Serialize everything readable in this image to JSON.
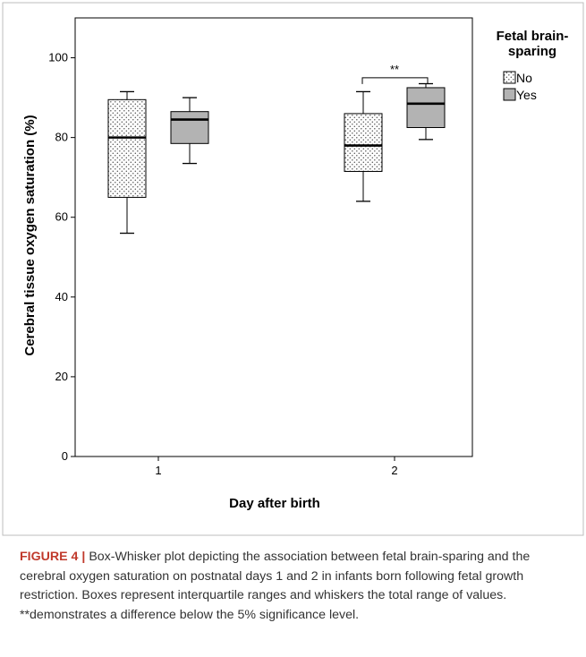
{
  "chart_data": {
    "type": "box",
    "xlabel": "Day after birth",
    "ylabel": "Cerebral tissue oxygen saturation (%)",
    "ylim": [
      0,
      110
    ],
    "yticks": [
      0,
      20,
      40,
      60,
      80,
      100
    ],
    "categories": [
      "1",
      "2"
    ],
    "legend": {
      "title": "Fetal brain-sparing",
      "placement": "top-right",
      "entries": [
        "No",
        "Yes"
      ]
    },
    "series": [
      {
        "name": "No",
        "pattern": "dotted",
        "fill": "#ffffff",
        "boxes": [
          {
            "category": "1",
            "min": 56,
            "q1": 65,
            "median": 80,
            "q3": 89.5,
            "max": 91.5
          },
          {
            "category": "2",
            "min": 64,
            "q1": 71.5,
            "median": 78,
            "q3": 86,
            "max": 91.5
          }
        ]
      },
      {
        "name": "Yes",
        "pattern": "solid",
        "fill": "#b3b3b3",
        "boxes": [
          {
            "category": "1",
            "min": 73.5,
            "q1": 78.5,
            "median": 84.5,
            "q3": 86.5,
            "max": 90
          },
          {
            "category": "2",
            "min": 79.5,
            "q1": 82.5,
            "median": 88.5,
            "q3": 92.5,
            "max": 93.5
          }
        ]
      }
    ],
    "annotations": [
      {
        "text": "**",
        "category": "2",
        "y": 95
      }
    ]
  },
  "caption": {
    "label": "FIGURE 4",
    "separator": "|",
    "text": "Box-Whisker plot depicting the association between fetal brain-sparing and the cerebral oxygen saturation on postnatal days 1 and 2 in infants born following fetal growth restriction. Boxes represent interquartile ranges and whiskers the total range of values. **demonstrates a difference below the 5% significance level."
  }
}
